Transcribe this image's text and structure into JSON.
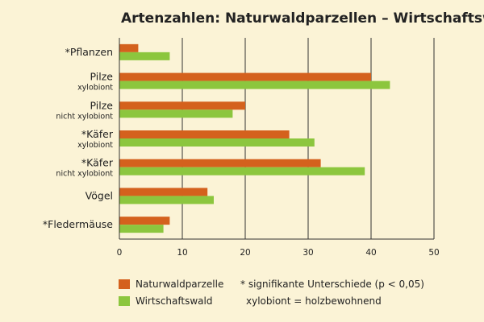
{
  "chart_data": {
    "type": "bar",
    "orientation": "horizontal",
    "title": "Artenzahlen: Naturwaldparzellen – Wirtschaftswald",
    "categories": [
      {
        "label": "*Pflanzen",
        "sub": ""
      },
      {
        "label": "Pilze",
        "sub": "xylobiont"
      },
      {
        "label": "Pilze",
        "sub": "nicht xylobiont"
      },
      {
        "label": "*Käfer",
        "sub": "xylobiont"
      },
      {
        "label": "*Käfer",
        "sub": "nicht xylobiont"
      },
      {
        "label": "Vögel",
        "sub": ""
      },
      {
        "label": "*Fledermäuse",
        "sub": ""
      }
    ],
    "series": [
      {
        "name": "Naturwaldparzelle",
        "color": "#d4611d",
        "values": [
          3,
          40,
          20,
          27,
          32,
          14,
          8
        ]
      },
      {
        "name": "Wirtschaftswald",
        "color": "#8cc63e",
        "values": [
          8,
          43,
          18,
          31,
          39,
          15,
          7
        ]
      }
    ],
    "xlim": [
      0,
      50
    ],
    "xticks": [
      0,
      10,
      20,
      30,
      40,
      50
    ],
    "grid": true,
    "legend_position": "bottom",
    "notes": [
      "* signifikante Unterschiede (p < 0,05)",
      "xylobiont = holzbewohnend"
    ]
  }
}
